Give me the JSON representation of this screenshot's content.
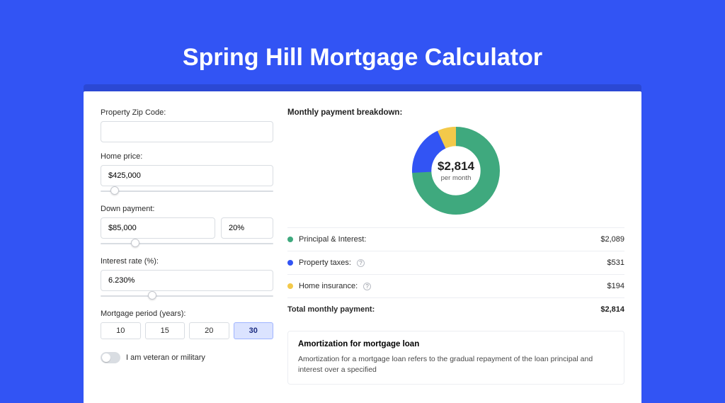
{
  "page": {
    "title": "Spring Hill Mortgage Calculator",
    "background_color": "#3254f4",
    "band_color": "#2b48d4"
  },
  "form": {
    "zip": {
      "label": "Property Zip Code:",
      "value": ""
    },
    "price": {
      "label": "Home price:",
      "value": "$425,000",
      "slider_pct": 8
    },
    "down": {
      "label": "Down payment:",
      "amount": "$85,000",
      "percent": "20%",
      "slider_pct": 20
    },
    "rate": {
      "label": "Interest rate (%):",
      "value": "6.230%",
      "slider_pct": 30
    },
    "period": {
      "label": "Mortgage period (years):",
      "options": [
        "10",
        "15",
        "20",
        "30"
      ],
      "selected": "30"
    },
    "veteran": {
      "label": "I am veteran or military",
      "checked": false
    }
  },
  "breakdown": {
    "title": "Monthly payment breakdown:",
    "center_amount": "$2,814",
    "center_sub": "per month",
    "donut": {
      "size": 124,
      "thickness_ratio": 0.22,
      "segments": [
        {
          "value": 2089,
          "color": "#3fa97e"
        },
        {
          "value": 531,
          "color": "#3254f4"
        },
        {
          "value": 194,
          "color": "#f3c94a"
        }
      ],
      "bg": "#ffffff"
    },
    "items": [
      {
        "label": "Principal & Interest:",
        "value": "$2,089",
        "color": "#3fa97e",
        "info": false
      },
      {
        "label": "Property taxes:",
        "value": "$531",
        "color": "#3254f4",
        "info": true
      },
      {
        "label": "Home insurance:",
        "value": "$194",
        "color": "#f3c94a",
        "info": true
      }
    ],
    "total": {
      "label": "Total monthly payment:",
      "value": "$2,814"
    }
  },
  "amortization": {
    "title": "Amortization for mortgage loan",
    "text": "Amortization for a mortgage loan refers to the gradual repayment of the loan principal and interest over a specified"
  }
}
